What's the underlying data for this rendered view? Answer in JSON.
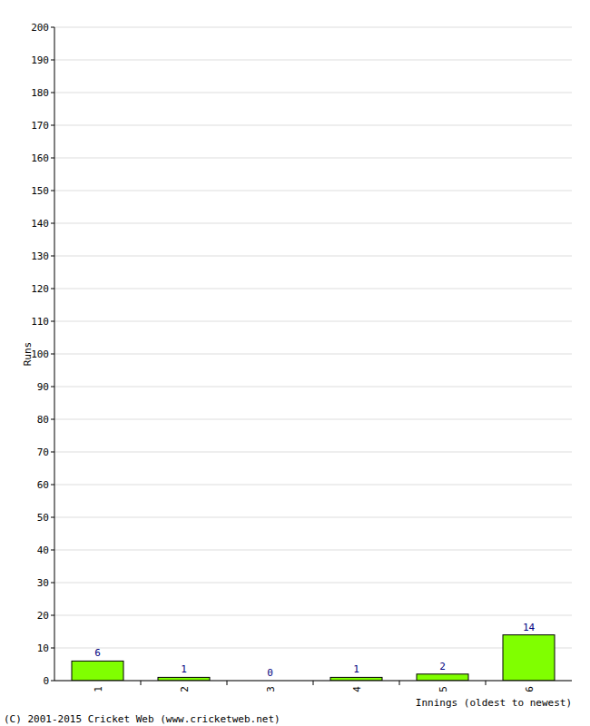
{
  "chart_data": {
    "type": "bar",
    "x_label": "Innings (oldest to newest)",
    "y_label": "Runs",
    "annotations": [
      "(C) 2001-2015 Cricket Web (www.cricketweb.net)"
    ],
    "categories": [
      "1",
      "2",
      "3",
      "4",
      "5",
      "6"
    ],
    "values": [
      6,
      1,
      0,
      1,
      2,
      14
    ],
    "color": "#80ff00",
    "ylim": [
      0,
      200
    ],
    "yticks": [
      0,
      10,
      20,
      30,
      40,
      50,
      60,
      70,
      80,
      90,
      100,
      110,
      120,
      130,
      140,
      150,
      160,
      170,
      180,
      190,
      200
    ],
    "grid": true,
    "data_labels": true
  }
}
